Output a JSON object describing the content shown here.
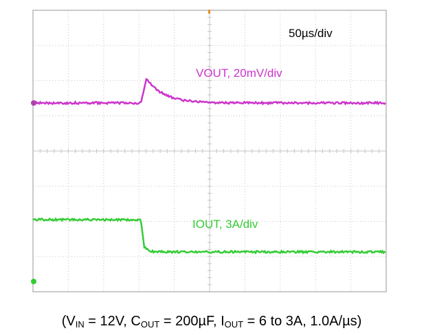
{
  "timebase": "50µs/div",
  "traces": [
    {
      "label": "VOUT, 20mV/div"
    },
    {
      "label": "IOUT, 3A/div"
    }
  ],
  "caption": [
    {
      "text": "(V"
    },
    {
      "sub": "IN"
    },
    {
      "text": " = 12V, C"
    },
    {
      "sub": "OUT"
    },
    {
      "text": " = 200µF, I"
    },
    {
      "sub": "OUT"
    },
    {
      "text": " = 6 to 3A, 1.0A/µs)"
    }
  ]
}
